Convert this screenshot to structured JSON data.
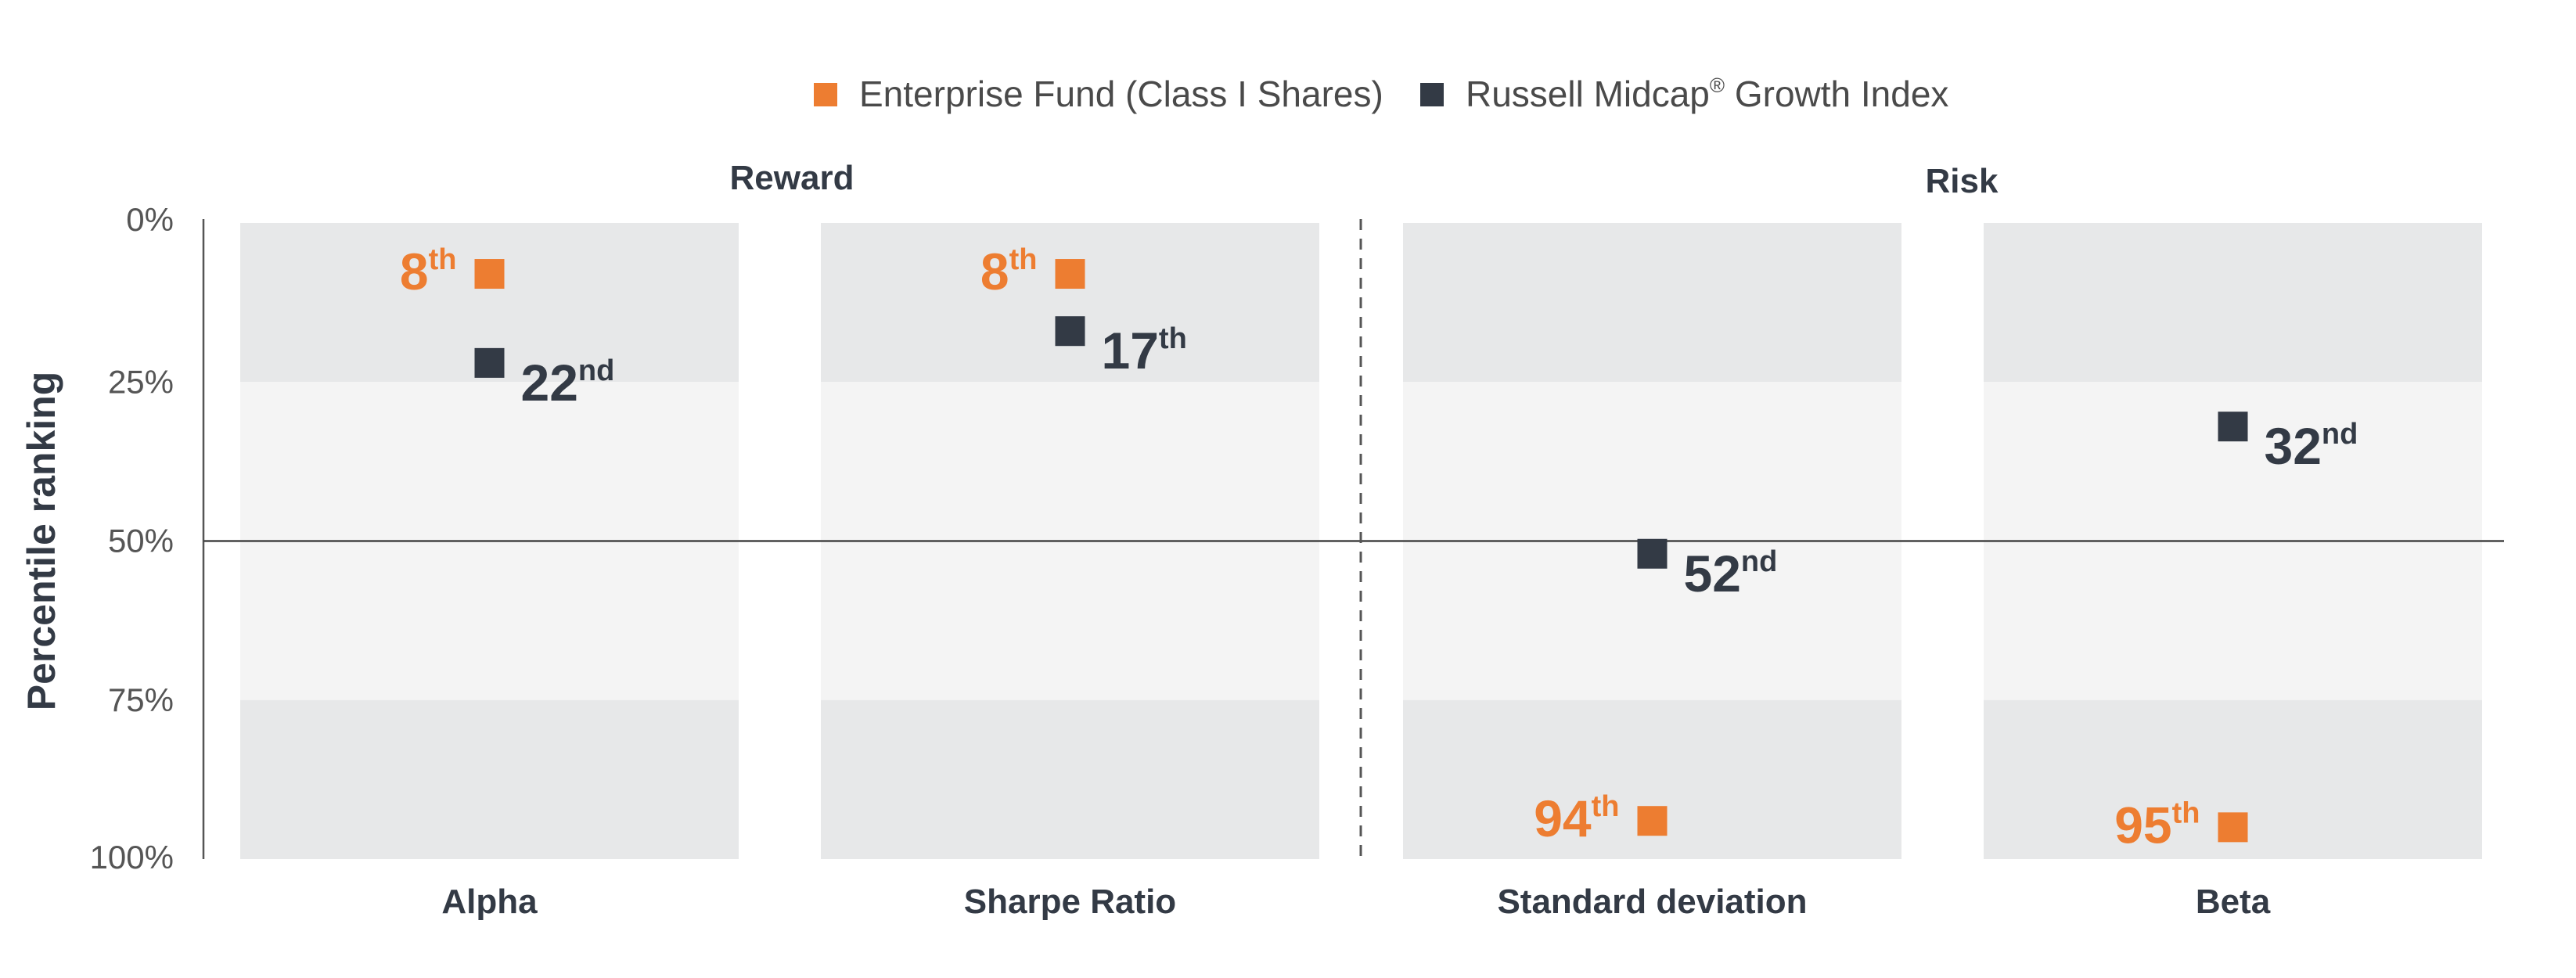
{
  "chart_data": {
    "type": "scatter",
    "ylabel": "Percentile ranking",
    "y_ticks": [
      "0%",
      "25%",
      "50%",
      "75%",
      "100%"
    ],
    "ylim": [
      0,
      100
    ],
    "y_inverted": true,
    "reference_line": 50,
    "legend_position": "top-center",
    "groups": [
      {
        "title": "Reward",
        "categories": [
          "Alpha",
          "Sharpe Ratio"
        ]
      },
      {
        "title": "Risk",
        "categories": [
          "Standard deviation",
          "Beta"
        ]
      }
    ],
    "categories": [
      "Alpha",
      "Sharpe Ratio",
      "Standard deviation",
      "Beta"
    ],
    "series": [
      {
        "name": "Enterprise Fund (Class I Shares)",
        "color": "#ed7d31",
        "values": [
          8,
          8,
          94,
          95
        ],
        "labels": [
          {
            "num": "8",
            "suffix": "th"
          },
          {
            "num": "8",
            "suffix": "th"
          },
          {
            "num": "94",
            "suffix": "th"
          },
          {
            "num": "95",
            "suffix": "th"
          }
        ]
      },
      {
        "name": "Russell Midcap® Growth Index",
        "name_parts": [
          "Russell Midcap",
          "®",
          " Growth Index"
        ],
        "color": "#333a45",
        "values": [
          22,
          17,
          52,
          32
        ],
        "labels": [
          {
            "num": "22",
            "suffix": "nd"
          },
          {
            "num": "17",
            "suffix": "th"
          },
          {
            "num": "52",
            "suffix": "nd"
          },
          {
            "num": "32",
            "suffix": "nd"
          }
        ]
      }
    ]
  }
}
